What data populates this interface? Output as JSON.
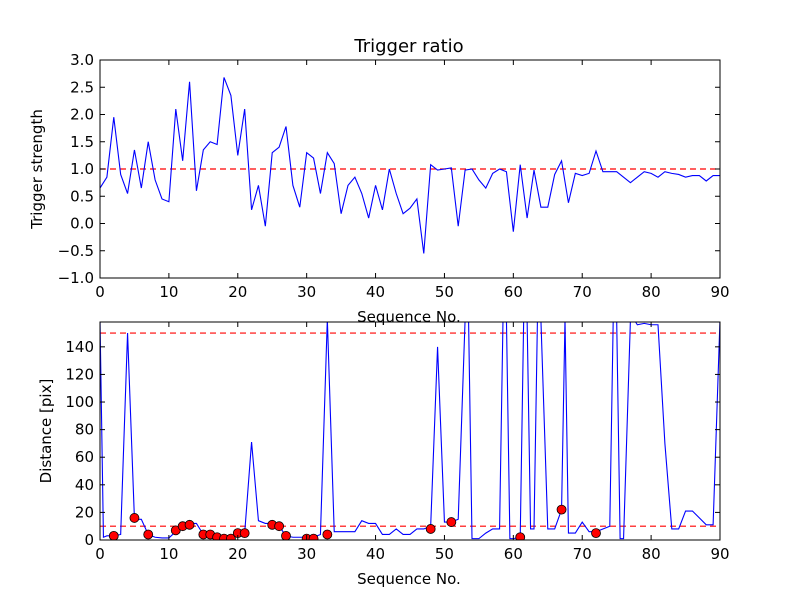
{
  "chart_data": [
    {
      "type": "line",
      "title": "Trigger ratio",
      "xlabel": "Sequence No.",
      "ylabel": "Trigger strength",
      "xlim": [
        0,
        90
      ],
      "ylim": [
        -1.0,
        3.0
      ],
      "xticks": [
        "0",
        "10",
        "20",
        "30",
        "40",
        "50",
        "60",
        "70",
        "80",
        "90"
      ],
      "yticks": [
        "−1.0",
        "−0.5",
        "0.0",
        "0.5",
        "1.0",
        "1.5",
        "2.0",
        "2.5",
        "3.0"
      ],
      "grid": false,
      "threshold": 1.0,
      "colors": {
        "line": "#0000ff",
        "threshold": "#ff0000"
      },
      "series": [
        {
          "x": [
            0,
            1,
            2,
            3,
            4,
            5,
            6,
            7,
            8,
            9,
            10,
            11,
            12,
            13,
            14,
            15,
            16,
            17,
            18,
            19,
            20,
            21,
            22,
            23,
            24,
            25,
            26,
            27,
            28,
            29,
            30,
            31,
            32,
            33,
            34,
            35,
            36,
            37,
            38,
            39,
            40,
            41,
            42,
            43,
            44,
            45,
            46,
            47,
            48,
            49,
            50,
            51,
            52,
            53,
            54,
            55,
            56,
            57,
            58,
            59,
            60,
            61,
            62,
            63,
            64,
            65,
            66,
            67,
            68,
            69,
            70,
            71,
            72,
            73,
            74,
            75,
            76,
            77,
            78,
            79,
            80,
            81,
            82,
            83,
            84,
            85,
            86,
            87,
            88,
            89,
            90
          ],
          "y": [
            0.65,
            0.85,
            1.95,
            0.9,
            0.55,
            1.35,
            0.65,
            1.5,
            0.8,
            0.45,
            0.4,
            2.1,
            1.15,
            2.6,
            0.6,
            1.35,
            1.5,
            1.45,
            2.68,
            2.35,
            1.25,
            2.1,
            0.25,
            0.7,
            -0.05,
            1.3,
            1.4,
            1.78,
            0.7,
            0.3,
            1.3,
            1.2,
            0.55,
            1.3,
            1.1,
            0.18,
            0.7,
            0.85,
            0.55,
            0.1,
            0.7,
            0.25,
            1.0,
            0.55,
            0.18,
            0.28,
            0.45,
            -0.55,
            1.08,
            0.98,
            1.0,
            1.02,
            -0.05,
            0.98,
            1.0,
            0.8,
            0.65,
            0.92,
            1.0,
            0.95,
            -0.15,
            1.08,
            0.1,
            0.98,
            0.3,
            0.3,
            0.9,
            1.15,
            0.38,
            0.92,
            0.88,
            0.92,
            1.33,
            0.95,
            0.95,
            0.95,
            0.85,
            0.75,
            0.85,
            0.95,
            0.92,
            0.85,
            0.95,
            0.92,
            0.9,
            0.85,
            0.88,
            0.88,
            0.78,
            0.88,
            0.88
          ]
        }
      ]
    },
    {
      "type": "line",
      "title": "",
      "xlabel": "Sequence No.",
      "ylabel": "Distance [pix]",
      "xlim": [
        0,
        90
      ],
      "ylim": [
        0,
        158
      ],
      "xticks": [
        "0",
        "10",
        "20",
        "30",
        "40",
        "50",
        "60",
        "70",
        "80",
        "90"
      ],
      "yticks": [
        "0",
        "20",
        "40",
        "60",
        "80",
        "100",
        "120",
        "140"
      ],
      "grid": false,
      "thresholds": [
        10,
        150
      ],
      "colors": {
        "line": "#0000ff",
        "threshold": "#ff0000",
        "marker": "#ff0000"
      },
      "series": [
        {
          "x": [
            0,
            0.5,
            1,
            2,
            3,
            4,
            5,
            6,
            7,
            8,
            9,
            10,
            11,
            12,
            13,
            14,
            15,
            16,
            17,
            18,
            19,
            20,
            21,
            22,
            23,
            24,
            25,
            26,
            27,
            28,
            29,
            30,
            31,
            32,
            33,
            34,
            35,
            36,
            37,
            38,
            39,
            40,
            41,
            42,
            43,
            44,
            45,
            46,
            47,
            48,
            49,
            50,
            51,
            52,
            53,
            53.5,
            54,
            55,
            56,
            57,
            58,
            58.5,
            59,
            59.5,
            60,
            61,
            61.5,
            62,
            62.5,
            63,
            63.5,
            64,
            65,
            66,
            67,
            67.5,
            68,
            69,
            70,
            71,
            72,
            73,
            74,
            74.5,
            75,
            75.5,
            76,
            77,
            77.5,
            78,
            79,
            80,
            80.5,
            81,
            82,
            83,
            84,
            85,
            86,
            87,
            88,
            89,
            90
          ],
          "y": [
            160,
            2,
            3,
            3,
            4,
            150,
            15,
            15,
            4,
            2,
            1.5,
            1.5,
            6,
            10,
            12,
            12,
            4,
            4,
            2,
            1,
            1,
            5,
            5,
            71,
            14,
            12,
            12,
            10,
            3,
            2,
            2,
            2,
            2,
            4,
            160,
            6,
            6,
            6,
            6,
            14,
            12,
            12,
            4,
            4,
            8,
            4,
            4,
            8,
            8,
            10,
            140,
            13,
            13,
            15,
            160,
            160,
            1,
            1,
            5,
            8,
            8,
            160,
            160,
            1,
            1,
            2,
            160,
            160,
            8,
            8,
            160,
            160,
            8,
            8,
            22,
            160,
            5,
            5,
            13,
            6,
            6,
            8,
            10,
            160,
            160,
            1,
            1,
            160,
            160,
            156,
            157,
            156,
            156,
            156,
            70,
            8,
            8,
            21,
            21,
            16,
            11,
            11,
            160
          ]
        }
      ],
      "markers": {
        "x": [
          2,
          5,
          7,
          11,
          12,
          13,
          15,
          16,
          17,
          18,
          19,
          20,
          21,
          25,
          26,
          27,
          30,
          31,
          33,
          48,
          51,
          61,
          67,
          72
        ],
        "y": [
          3,
          16,
          4,
          7,
          10,
          11,
          4,
          4,
          2,
          1,
          1,
          5,
          5,
          11,
          10,
          3,
          1,
          1,
          4,
          8,
          13,
          2,
          22,
          5
        ]
      }
    }
  ]
}
